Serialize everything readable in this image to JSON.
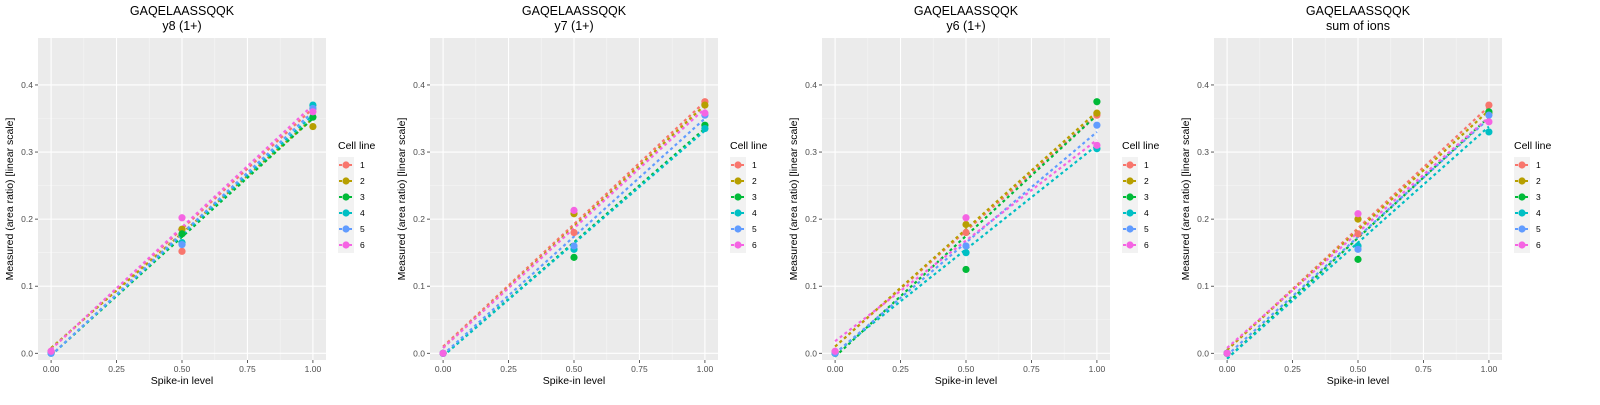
{
  "chart_data": [
    {
      "type": "scatter",
      "title": "GAQELAASSQQK",
      "subtitle": "y8 (1+)",
      "xlabel": "Spike-in level",
      "ylabel": "Measured (area ratio) [linear scale]",
      "xlim": [
        -0.05,
        1.05
      ],
      "ylim": [
        -0.01,
        0.47
      ],
      "x_ticks": [
        0.0,
        0.25,
        0.5,
        0.75,
        1.0
      ],
      "x_tick_labels": [
        "0.00",
        "0.25",
        "0.50",
        "0.75",
        "1.00"
      ],
      "y_ticks": [
        0.0,
        0.1,
        0.2,
        0.3,
        0.4
      ],
      "y_tick_labels": [
        "0.0",
        "0.1",
        "0.2",
        "0.3",
        "0.4"
      ],
      "grid": true,
      "legend_title": "Cell line",
      "legend_position": "right",
      "x": [
        0,
        0.5,
        1
      ],
      "series": [
        {
          "name": "1",
          "color": "#F8766D",
          "values": [
            0.003,
            0.152,
            0.365
          ],
          "fit": [
            0.006,
            0.365
          ]
        },
        {
          "name": "2",
          "color": "#B79F00",
          "values": [
            0.002,
            0.185,
            0.338
          ],
          "fit": [
            0.008,
            0.35
          ]
        },
        {
          "name": "3",
          "color": "#00BA38",
          "values": [
            0.001,
            0.178,
            0.352
          ],
          "fit": [
            -0.003,
            0.35
          ]
        },
        {
          "name": "4",
          "color": "#00BFC4",
          "values": [
            0.0,
            0.165,
            0.37
          ],
          "fit": [
            -0.003,
            0.355
          ]
        },
        {
          "name": "5",
          "color": "#619CFF",
          "values": [
            0.0,
            0.162,
            0.365
          ],
          "fit": [
            -0.003,
            0.36
          ]
        },
        {
          "name": "6",
          "color": "#F564E3",
          "values": [
            0.003,
            0.202,
            0.36
          ],
          "fit": [
            0.006,
            0.37
          ]
        }
      ]
    },
    {
      "type": "scatter",
      "title": "GAQELAASSQQK",
      "subtitle": "y7 (1+)",
      "xlabel": "Spike-in level",
      "ylabel": "Measured (area ratio) [linear scale]",
      "xlim": [
        -0.05,
        1.05
      ],
      "ylim": [
        -0.01,
        0.47
      ],
      "x_ticks": [
        0.0,
        0.25,
        0.5,
        0.75,
        1.0
      ],
      "x_tick_labels": [
        "0.00",
        "0.25",
        "0.50",
        "0.75",
        "1.00"
      ],
      "y_ticks": [
        0.0,
        0.1,
        0.2,
        0.3,
        0.4
      ],
      "y_tick_labels": [
        "0.0",
        "0.1",
        "0.2",
        "0.3",
        "0.4"
      ],
      "grid": true,
      "legend_title": "Cell line",
      "legend_position": "right",
      "x": [
        0,
        0.5,
        1
      ],
      "series": [
        {
          "name": "1",
          "color": "#F8766D",
          "values": [
            0.0,
            0.18,
            0.375
          ],
          "fit": [
            0.01,
            0.375
          ]
        },
        {
          "name": "2",
          "color": "#B79F00",
          "values": [
            0.0,
            0.208,
            0.37
          ],
          "fit": [
            0.008,
            0.37
          ]
        },
        {
          "name": "3",
          "color": "#00BA38",
          "values": [
            0.0,
            0.143,
            0.34
          ],
          "fit": [
            -0.004,
            0.335
          ]
        },
        {
          "name": "4",
          "color": "#00BFC4",
          "values": [
            0.0,
            0.155,
            0.335
          ],
          "fit": [
            -0.004,
            0.332
          ]
        },
        {
          "name": "5",
          "color": "#619CFF",
          "values": [
            0.0,
            0.16,
            0.355
          ],
          "fit": [
            -0.002,
            0.35
          ]
        },
        {
          "name": "6",
          "color": "#F564E3",
          "values": [
            0.0,
            0.213,
            0.358
          ],
          "fit": [
            0.008,
            0.365
          ]
        }
      ]
    },
    {
      "type": "scatter",
      "title": "GAQELAASSQQK",
      "subtitle": "y6 (1+)",
      "xlabel": "Spike-in level",
      "ylabel": "Measured (area ratio) [linear scale]",
      "xlim": [
        -0.05,
        1.05
      ],
      "ylim": [
        -0.01,
        0.47
      ],
      "x_ticks": [
        0.0,
        0.25,
        0.5,
        0.75,
        1.0
      ],
      "x_tick_labels": [
        "0.00",
        "0.25",
        "0.50",
        "0.75",
        "1.00"
      ],
      "y_ticks": [
        0.0,
        0.1,
        0.2,
        0.3,
        0.4
      ],
      "y_tick_labels": [
        "0.0",
        "0.1",
        "0.2",
        "0.3",
        "0.4"
      ],
      "grid": true,
      "legend_title": "Cell line",
      "legend_position": "right",
      "x": [
        0,
        0.5,
        1
      ],
      "series": [
        {
          "name": "1",
          "color": "#F8766D",
          "values": [
            0.002,
            0.18,
            0.355
          ],
          "fit": [
            0.01,
            0.355
          ]
        },
        {
          "name": "2",
          "color": "#B79F00",
          "values": [
            0.002,
            0.192,
            0.358
          ],
          "fit": [
            0.01,
            0.36
          ]
        },
        {
          "name": "3",
          "color": "#00BA38",
          "values": [
            0.0,
            0.125,
            0.375
          ],
          "fit": [
            -0.005,
            0.355
          ]
        },
        {
          "name": "4",
          "color": "#00BFC4",
          "values": [
            0.0,
            0.15,
            0.305
          ],
          "fit": [
            0.0,
            0.31
          ]
        },
        {
          "name": "5",
          "color": "#619CFF",
          "values": [
            0.0,
            0.16,
            0.34
          ],
          "fit": [
            0.0,
            0.33
          ]
        },
        {
          "name": "6",
          "color": "#F564E3",
          "values": [
            0.003,
            0.202,
            0.31
          ],
          "fit": [
            0.018,
            0.318
          ]
        }
      ]
    },
    {
      "type": "scatter",
      "title": "GAQELAASSQQK",
      "subtitle": "sum of ions",
      "xlabel": "Spike-in level",
      "ylabel": "Measured (area ratio) [linear scale]",
      "xlim": [
        -0.05,
        1.05
      ],
      "ylim": [
        -0.01,
        0.47
      ],
      "x_ticks": [
        0.0,
        0.25,
        0.5,
        0.75,
        1.0
      ],
      "x_tick_labels": [
        "0.00",
        "0.25",
        "0.50",
        "0.75",
        "1.00"
      ],
      "y_ticks": [
        0.0,
        0.1,
        0.2,
        0.3,
        0.4
      ],
      "y_tick_labels": [
        "0.0",
        "0.1",
        "0.2",
        "0.3",
        "0.4"
      ],
      "grid": true,
      "legend_title": "Cell line",
      "legend_position": "right",
      "x": [
        0,
        0.5,
        1
      ],
      "series": [
        {
          "name": "1",
          "color": "#F8766D",
          "values": [
            0.0,
            0.178,
            0.37
          ],
          "fit": [
            0.005,
            0.368
          ]
        },
        {
          "name": "2",
          "color": "#B79F00",
          "values": [
            0.0,
            0.2,
            0.358
          ],
          "fit": [
            0.005,
            0.362
          ]
        },
        {
          "name": "3",
          "color": "#00BA38",
          "values": [
            0.0,
            0.14,
            0.36
          ],
          "fit": [
            -0.008,
            0.352
          ]
        },
        {
          "name": "4",
          "color": "#00BFC4",
          "values": [
            0.0,
            0.16,
            0.33
          ],
          "fit": [
            -0.008,
            0.338
          ]
        },
        {
          "name": "5",
          "color": "#619CFF",
          "values": [
            0.0,
            0.155,
            0.355
          ],
          "fit": [
            -0.003,
            0.35
          ]
        },
        {
          "name": "6",
          "color": "#F564E3",
          "values": [
            0.0,
            0.208,
            0.345
          ],
          "fit": [
            0.008,
            0.352
          ]
        }
      ]
    }
  ]
}
